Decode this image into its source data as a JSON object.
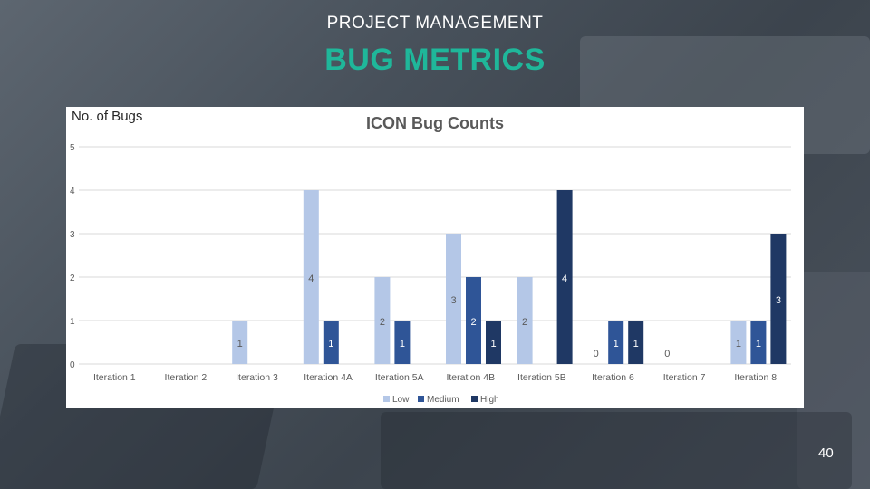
{
  "slide": {
    "kicker": "PROJECT MANAGEMENT",
    "title": "BUG METRICS",
    "page_number": "40"
  },
  "colors": {
    "title_accent": "#1fb79a",
    "low": "#b4c7e7",
    "medium": "#2f5597",
    "high": "#1f3864"
  },
  "chart_data": {
    "type": "bar",
    "title": "ICON Bug Counts",
    "xlabel": "",
    "ylabel": "No. of Bugs",
    "ylim": [
      0,
      5
    ],
    "yticks": [
      "0",
      "1",
      "2",
      "3",
      "4",
      "5"
    ],
    "grid": true,
    "legend_position": "bottom",
    "categories": [
      "Iteration 1",
      "Iteration 2",
      "Iteration 3",
      "Iteration 4A",
      "Iteration 5A",
      "Iteration 4B",
      "Iteration 5B",
      "Iteration 6",
      "Iteration 7",
      "Iteration 8"
    ],
    "series": [
      {
        "name": "Low",
        "values": [
          null,
          null,
          1,
          4,
          2,
          3,
          2,
          0,
          0,
          1
        ]
      },
      {
        "name": "Medium",
        "values": [
          null,
          null,
          null,
          1,
          1,
          2,
          null,
          1,
          null,
          1
        ]
      },
      {
        "name": "High",
        "values": [
          null,
          null,
          null,
          null,
          null,
          1,
          4,
          1,
          null,
          3
        ]
      }
    ]
  }
}
